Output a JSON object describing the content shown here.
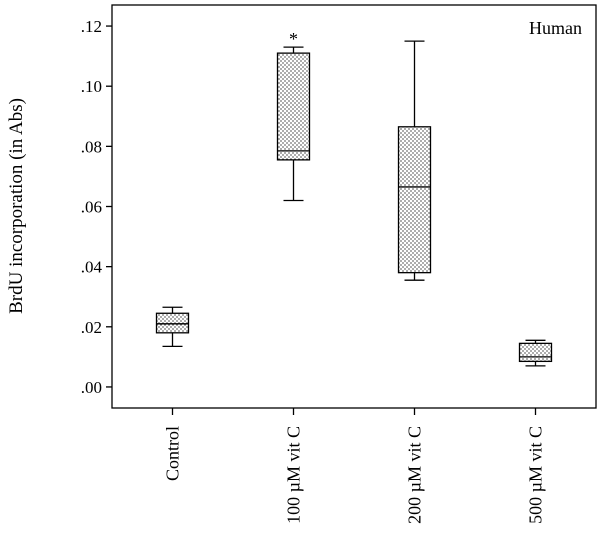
{
  "chart_data": {
    "type": "boxplot",
    "ylabel": "BrdU incorporation (in Abs)",
    "annotation": "Human",
    "ylim": [
      -0.007,
      0.127
    ],
    "yticks": [
      0.0,
      0.02,
      0.04,
      0.06,
      0.08,
      0.1,
      0.12
    ],
    "ytick_labels": [
      ".00",
      ".02",
      ".04",
      ".06",
      ".08",
      ".10",
      ".12"
    ],
    "categories": [
      "Control",
      "100 µM vit C",
      "200 µM vit C",
      "500 µM vit C"
    ],
    "boxes": [
      {
        "min": 0.0135,
        "q1": 0.018,
        "median": 0.021,
        "q3": 0.0245,
        "max": 0.0265,
        "marker": ""
      },
      {
        "min": 0.062,
        "q1": 0.0755,
        "median": 0.0785,
        "q3": 0.111,
        "max": 0.113,
        "marker": "*"
      },
      {
        "min": 0.0355,
        "q1": 0.038,
        "median": 0.0665,
        "q3": 0.0865,
        "max": 0.115,
        "marker": ""
      },
      {
        "min": 0.007,
        "q1": 0.0085,
        "median": 0.01,
        "q3": 0.0145,
        "max": 0.0155,
        "marker": ""
      }
    ]
  }
}
